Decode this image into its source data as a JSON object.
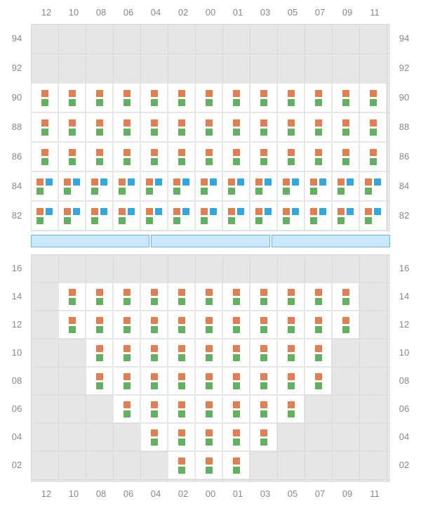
{
  "type": "seating-map",
  "background_color": "#ffffff",
  "grid_background": "#e6e6e6",
  "gridline_color": "#d9d9d9",
  "label_color": "#888888",
  "label_fontsize": 13,
  "colors": {
    "orange": "#e37e50",
    "green": "#60b160",
    "blue": "#2fa8e0",
    "table_fill": "#c9e8fb",
    "table_border": "#6fb8e0"
  },
  "columns": [
    "12",
    "10",
    "08",
    "06",
    "04",
    "02",
    "00",
    "01",
    "03",
    "05",
    "07",
    "09",
    "11"
  ],
  "upper_rows": [
    "94",
    "92",
    "90",
    "88",
    "86",
    "84",
    "82"
  ],
  "lower_rows": [
    "16",
    "14",
    "12",
    "10",
    "08",
    "06",
    "04",
    "02"
  ],
  "upper_pattern": {
    "94": [],
    "92": [],
    "90": {
      "type": "og",
      "cols": [
        "12",
        "10",
        "08",
        "06",
        "04",
        "02",
        "00",
        "01",
        "03",
        "05",
        "07",
        "09",
        "11"
      ]
    },
    "88": {
      "type": "og",
      "cols": [
        "12",
        "10",
        "08",
        "06",
        "04",
        "02",
        "00",
        "01",
        "03",
        "05",
        "07",
        "09",
        "11"
      ]
    },
    "86": {
      "type": "og",
      "cols": [
        "12",
        "10",
        "08",
        "06",
        "04",
        "02",
        "00",
        "01",
        "03",
        "05",
        "07",
        "09",
        "11"
      ]
    },
    "84": {
      "type": "ogb",
      "cols": [
        "12",
        "10",
        "08",
        "06",
        "04",
        "02",
        "00",
        "01",
        "03",
        "05",
        "07",
        "09",
        "11"
      ]
    },
    "82": {
      "type": "ogb",
      "cols": [
        "12",
        "10",
        "08",
        "06",
        "04",
        "02",
        "00",
        "01",
        "03",
        "05",
        "07",
        "09",
        "11"
      ]
    }
  },
  "lower_pattern": {
    "16": [],
    "14": [
      "10",
      "08",
      "06",
      "04",
      "02",
      "00",
      "01",
      "03",
      "05",
      "07",
      "09"
    ],
    "12": [
      "10",
      "08",
      "06",
      "04",
      "02",
      "00",
      "01",
      "03",
      "05",
      "07",
      "09"
    ],
    "10": [
      "08",
      "06",
      "04",
      "02",
      "00",
      "01",
      "03",
      "05",
      "07"
    ],
    "08": [
      "08",
      "06",
      "04",
      "02",
      "00",
      "01",
      "03",
      "05",
      "07"
    ],
    "06": [
      "06",
      "04",
      "02",
      "00",
      "01",
      "03",
      "05"
    ],
    "04": [
      "04",
      "02",
      "00",
      "01",
      "03"
    ],
    "02": [
      "02",
      "00",
      "01"
    ]
  },
  "tables": 3
}
